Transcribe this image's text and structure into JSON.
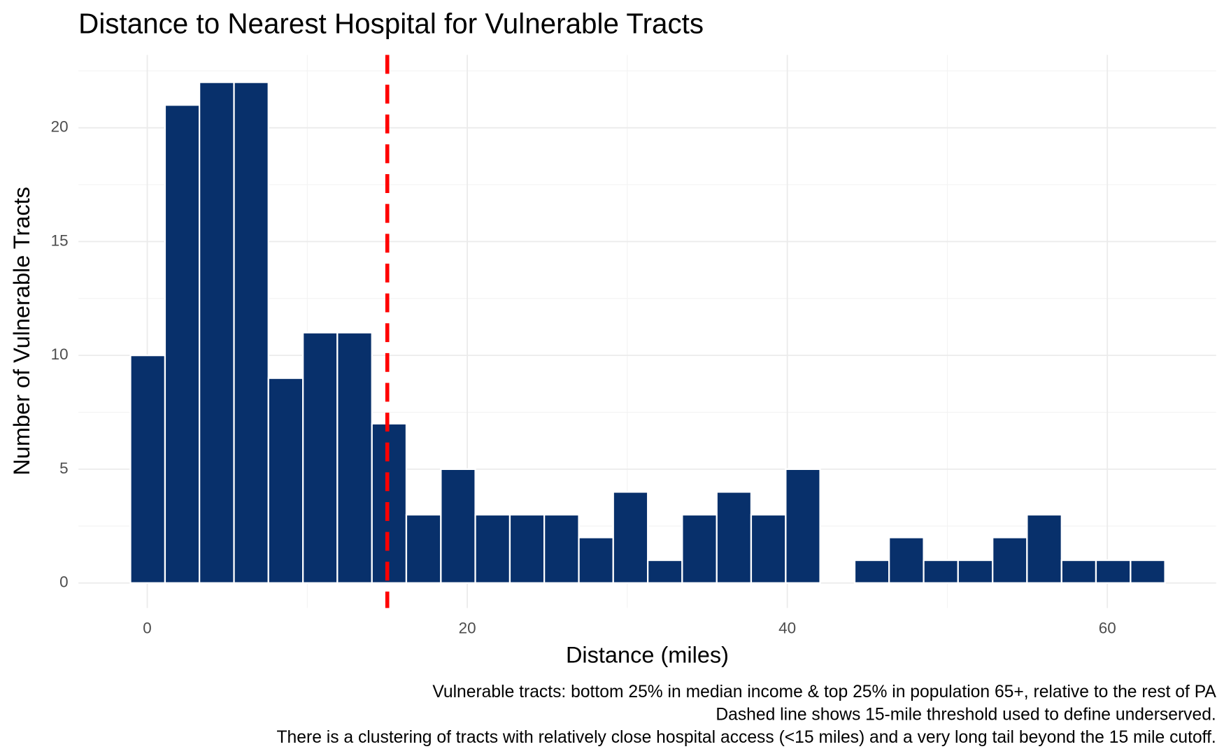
{
  "chart_data": {
    "type": "histogram",
    "title": "Distance to Nearest Hospital for Vulnerable Tracts",
    "x_label": "Distance (miles)",
    "y_label": "Number of Vulnerable Tracts",
    "captions": [
      "Vulnerable tracts: bottom 25% in median income & top 25% in population 65+, relative to the rest of PA",
      "Dashed line shows 15-mile threshold used to define underserved.",
      "There is a clustering of tracts with relatively close hospital access (<15 miles) and a very long tail beyond the 15 mile cutoff."
    ],
    "bins": [
      -1.05,
      1.11,
      3.26,
      5.42,
      7.57,
      9.73,
      11.88,
      14.04,
      16.19,
      18.35,
      20.5,
      22.66,
      24.81,
      26.97,
      29.12,
      31.28,
      33.43,
      35.59,
      37.74,
      39.9,
      42.05,
      44.21,
      46.36,
      48.52,
      50.67,
      52.83,
      54.98,
      57.14,
      59.29,
      61.45,
      63.6
    ],
    "values": [
      10,
      21,
      22,
      22,
      9,
      11,
      11,
      7,
      3,
      5,
      3,
      3,
      3,
      2,
      4,
      1,
      3,
      4,
      3,
      5,
      0,
      1,
      2,
      1,
      1,
      2,
      3,
      1,
      1,
      1
    ],
    "color": "#08306b",
    "threshold": {
      "value": 15,
      "color": "#ff0000"
    },
    "xlim": [
      -4.3,
      66.8
    ],
    "ylim": [
      -1.1,
      23.2
    ],
    "xticks": [
      0,
      20,
      40,
      60
    ],
    "yticks": [
      0,
      5,
      10,
      15,
      20
    ],
    "x_minor_ticks": [
      10,
      30,
      50
    ],
    "y_minor_ticks": [
      2.5,
      7.5,
      12.5,
      17.5,
      22.5
    ],
    "grid": true
  }
}
